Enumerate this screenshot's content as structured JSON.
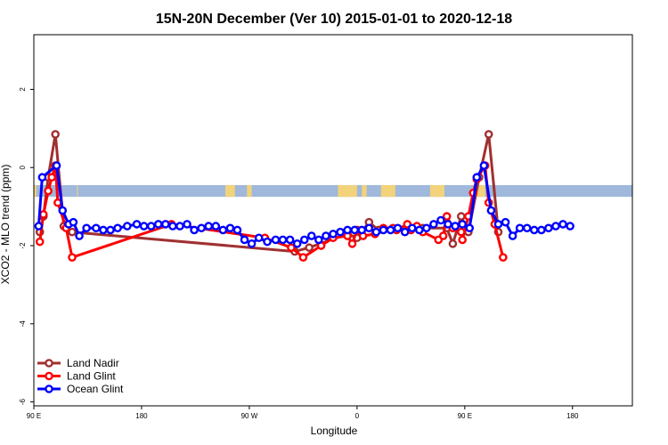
{
  "chart_data": {
    "type": "line",
    "title": "15N-20N December (Ver 10)   2015-01-01 to 2020-12-18",
    "xlabel": "Longitude",
    "ylabel": "XCO2 - MLO trend (ppm)",
    "xlim": [
      0,
      500
    ],
    "ylim": [
      -6.1,
      3.4
    ],
    "x_ticks": [
      {
        "value": 0,
        "label": "90 E"
      },
      {
        "value": 90,
        "label": "180"
      },
      {
        "value": 180,
        "label": "90 W"
      },
      {
        "value": 270,
        "label": "0"
      },
      {
        "value": 360,
        "label": "90 E"
      },
      {
        "value": 450,
        "label": "180"
      }
    ],
    "y_ticks": [
      {
        "value": -6,
        "label": "-6"
      },
      {
        "value": -4,
        "label": "-4"
      },
      {
        "value": -2,
        "label": "-2"
      },
      {
        "value": 0,
        "label": "0"
      },
      {
        "value": 2,
        "label": "2"
      }
    ],
    "band": {
      "y_top": -0.45,
      "y_bottom": -0.75,
      "color": "#9fb8dc",
      "land_color": "#f2d27a"
    },
    "legend_position": "bottom-left",
    "grid": false,
    "series": [
      {
        "name": "Land Nadir",
        "color": "#a03030",
        "points": [
          [
            5,
            -1.65
          ],
          [
            8,
            -1.25
          ],
          [
            12,
            -0.25
          ],
          [
            18,
            0.85
          ],
          [
            25,
            -1.5
          ],
          [
            32,
            -1.65
          ],
          [
            218,
            -2.15
          ],
          [
            230,
            -2.05
          ],
          [
            262,
            -1.7
          ],
          [
            270,
            -1.8
          ],
          [
            280,
            -1.4
          ],
          [
            288,
            -1.6
          ],
          [
            325,
            -1.55
          ],
          [
            345,
            -1.55
          ],
          [
            350,
            -1.95
          ],
          [
            357,
            -1.25
          ],
          [
            363,
            -1.65
          ],
          [
            372,
            -0.25
          ],
          [
            380,
            0.85
          ],
          [
            388,
            -1.65
          ]
        ]
      },
      {
        "name": "Land Glint",
        "color": "#ff0000",
        "points": [
          [
            5,
            -1.9
          ],
          [
            8,
            -1.2
          ],
          [
            12,
            -0.6
          ],
          [
            15,
            -0.25
          ],
          [
            18,
            0.05
          ],
          [
            20,
            -0.9
          ],
          [
            27,
            -1.55
          ],
          [
            32,
            -2.3
          ],
          [
            115,
            -1.45
          ],
          [
            193,
            -1.8
          ],
          [
            215,
            -2.05
          ],
          [
            225,
            -2.3
          ],
          [
            240,
            -2.0
          ],
          [
            250,
            -1.8
          ],
          [
            262,
            -1.75
          ],
          [
            266,
            -1.95
          ],
          [
            270,
            -1.6
          ],
          [
            275,
            -1.75
          ],
          [
            285,
            -1.7
          ],
          [
            292,
            -1.55
          ],
          [
            300,
            -1.55
          ],
          [
            303,
            -1.6
          ],
          [
            312,
            -1.45
          ],
          [
            315,
            -1.6
          ],
          [
            320,
            -1.5
          ],
          [
            325,
            -1.65
          ],
          [
            338,
            -1.85
          ],
          [
            342,
            -1.75
          ],
          [
            345,
            -1.25
          ],
          [
            350,
            -1.55
          ],
          [
            357,
            -1.65
          ],
          [
            358,
            -1.85
          ],
          [
            363,
            -1.25
          ],
          [
            367,
            -0.65
          ],
          [
            370,
            -0.3
          ],
          [
            377,
            0.05
          ],
          [
            380,
            -0.9
          ],
          [
            385,
            -1.45
          ],
          [
            392,
            -2.3
          ]
        ]
      },
      {
        "name": "Ocean Glint",
        "color": "#0000ff",
        "points": [
          [
            4,
            -1.5
          ],
          [
            7,
            -0.25
          ],
          [
            19,
            0.05
          ],
          [
            24,
            -1.1
          ],
          [
            29,
            -1.45
          ],
          [
            33,
            -1.4
          ],
          [
            38,
            -1.75
          ],
          [
            44,
            -1.55
          ],
          [
            52,
            -1.55
          ],
          [
            58,
            -1.6
          ],
          [
            64,
            -1.6
          ],
          [
            70,
            -1.55
          ],
          [
            78,
            -1.5
          ],
          [
            86,
            -1.45
          ],
          [
            92,
            -1.5
          ],
          [
            98,
            -1.5
          ],
          [
            104,
            -1.45
          ],
          [
            110,
            -1.45
          ],
          [
            116,
            -1.5
          ],
          [
            122,
            -1.5
          ],
          [
            128,
            -1.45
          ],
          [
            134,
            -1.6
          ],
          [
            140,
            -1.55
          ],
          [
            146,
            -1.5
          ],
          [
            152,
            -1.5
          ],
          [
            158,
            -1.6
          ],
          [
            164,
            -1.55
          ],
          [
            170,
            -1.6
          ],
          [
            176,
            -1.85
          ],
          [
            182,
            -1.95
          ],
          [
            188,
            -1.8
          ],
          [
            195,
            -1.9
          ],
          [
            202,
            -1.85
          ],
          [
            208,
            -1.85
          ],
          [
            214,
            -1.85
          ],
          [
            220,
            -1.95
          ],
          [
            226,
            -1.85
          ],
          [
            232,
            -1.75
          ],
          [
            238,
            -1.85
          ],
          [
            244,
            -1.75
          ],
          [
            250,
            -1.7
          ],
          [
            256,
            -1.65
          ],
          [
            262,
            -1.6
          ],
          [
            268,
            -1.6
          ],
          [
            274,
            -1.6
          ],
          [
            280,
            -1.55
          ],
          [
            286,
            -1.65
          ],
          [
            292,
            -1.6
          ],
          [
            298,
            -1.6
          ],
          [
            304,
            -1.55
          ],
          [
            310,
            -1.65
          ],
          [
            316,
            -1.55
          ],
          [
            322,
            -1.6
          ],
          [
            328,
            -1.55
          ],
          [
            334,
            -1.45
          ],
          [
            340,
            -1.35
          ],
          [
            346,
            -1.45
          ],
          [
            352,
            -1.5
          ],
          [
            358,
            -1.45
          ],
          [
            364,
            -1.55
          ],
          [
            370,
            -0.25
          ],
          [
            376,
            0.05
          ],
          [
            382,
            -1.1
          ],
          [
            388,
            -1.45
          ],
          [
            394,
            -1.4
          ],
          [
            400,
            -1.75
          ],
          [
            406,
            -1.55
          ],
          [
            412,
            -1.55
          ],
          [
            418,
            -1.6
          ],
          [
            424,
            -1.6
          ],
          [
            430,
            -1.55
          ],
          [
            436,
            -1.5
          ],
          [
            442,
            -1.45
          ],
          [
            448,
            -1.5
          ]
        ]
      }
    ]
  }
}
